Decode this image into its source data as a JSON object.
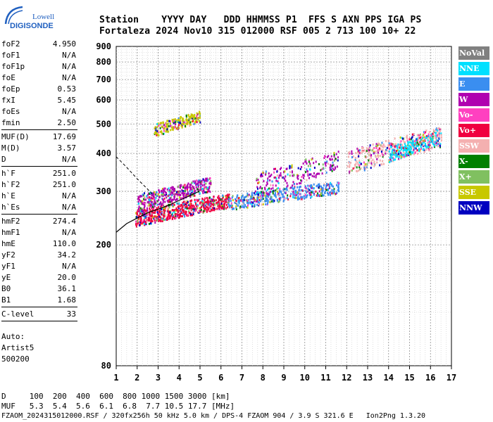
{
  "logo": {
    "line1": "Lowell",
    "line2": "DIGISONDE"
  },
  "header": {
    "labels": "Station    YYYY DAY   DDD HHMMSS P1  FFS S AXN PPS IGA PS",
    "values": "Fortaleza 2024 Nov10 315 012000 RSF 005 2 713 100 10+ 22"
  },
  "params": {
    "group1": [
      [
        "foF2",
        "4.950"
      ],
      [
        "foF1",
        "N/A"
      ],
      [
        "foF1p",
        "N/A"
      ],
      [
        "foE",
        "N/A"
      ],
      [
        "foEp",
        "0.53"
      ],
      [
        "fxI",
        "5.45"
      ],
      [
        "foEs",
        "N/A"
      ],
      [
        "fmin",
        "2.50"
      ]
    ],
    "group2": [
      [
        "MUF(D)",
        "17.69"
      ],
      [
        "M(D)",
        "3.57"
      ],
      [
        "D",
        "N/A"
      ]
    ],
    "group3": [
      [
        "h`F",
        "251.0"
      ],
      [
        "h`F2",
        "251.0"
      ],
      [
        "h`E",
        "N/A"
      ],
      [
        "h`Es",
        "N/A"
      ]
    ],
    "group4": [
      [
        "hmF2",
        "274.4"
      ],
      [
        "hmF1",
        "N/A"
      ],
      [
        "hmE",
        "110.0"
      ],
      [
        "yF2",
        "34.2"
      ],
      [
        "yF1",
        "N/A"
      ],
      [
        "yE",
        "20.0"
      ],
      [
        "B0",
        "36.1"
      ],
      [
        "B1",
        "1.68"
      ]
    ],
    "group5": [
      [
        "C-level",
        "33"
      ]
    ],
    "auto": [
      "Auto:",
      "Artist5",
      "500200"
    ]
  },
  "legend": [
    {
      "label": "NoVal",
      "color": "#808080"
    },
    {
      "label": "NNE",
      "color": "#00e0ff"
    },
    {
      "label": "E",
      "color": "#3a8ef0"
    },
    {
      "label": "W",
      "color": "#b000b0"
    },
    {
      "label": "Vo-",
      "color": "#ff40c0"
    },
    {
      "label": "Vo+",
      "color": "#f00040"
    },
    {
      "label": "SSW",
      "color": "#f4b0b0"
    },
    {
      "label": "X-",
      "color": "#008000"
    },
    {
      "label": "X+",
      "color": "#80c060"
    },
    {
      "label": "SSE",
      "color": "#c8c800"
    },
    {
      "label": "NNW",
      "color": "#0000c0"
    }
  ],
  "footer": {
    "dist": "D     100  200  400  600  800 1000 1500 3000 [km]",
    "muf": "MUF   5.3  5.4  5.6  6.1  6.8  7.7 10.5 17.7 [MHz]",
    "file": "FZAOM_2024315012000.RSF / 320fx256h 50 kHz 5.0 km / DPS-4 FZAOM 904 / 3.9 S 321.6 E   Ion2Png 1.3.20"
  },
  "chart_data": {
    "type": "scatter",
    "xlim": [
      1,
      17
    ],
    "ylim": [
      80,
      900
    ],
    "xticks": [
      "1",
      "2",
      "3",
      "4",
      "5",
      "6",
      "7",
      "8",
      "9",
      "10",
      "11",
      "12",
      "13",
      "14",
      "15",
      "16",
      "17"
    ],
    "yticks": [
      "80",
      "200",
      "300",
      "400",
      "500",
      "600",
      "700",
      "800",
      "900"
    ],
    "xtick_values": [
      1,
      2,
      3,
      4,
      5,
      6,
      7,
      8,
      9,
      10,
      11,
      12,
      13,
      14,
      15,
      16,
      17
    ],
    "ytick_values": [
      80,
      200,
      300,
      400,
      500,
      600,
      700,
      800,
      900
    ],
    "xlabel": "",
    "ylabel": "",
    "log_y": true,
    "grid": true,
    "clusters": [
      {
        "x": [
          1.9,
          6.4
        ],
        "y": [
          240,
          300
        ],
        "color": "#f00040",
        "density": 3
      },
      {
        "x": [
          2.0,
          5.5
        ],
        "y": [
          270,
          340
        ],
        "color": "#b000b0",
        "density": 2
      },
      {
        "x": [
          6.3,
          11.6
        ],
        "y": [
          270,
          330
        ],
        "color": "#3a8ef0",
        "density": 2
      },
      {
        "x": [
          7.6,
          11.6
        ],
        "y": [
          300,
          420
        ],
        "color": "#b000b0",
        "density": 1
      },
      {
        "x": [
          2.8,
          5.0
        ],
        "y": [
          470,
          560
        ],
        "color": "#c8c800",
        "density": 1
      },
      {
        "x": [
          12.0,
          16.5
        ],
        "y": [
          360,
          500
        ],
        "color": "#f4b0b0",
        "density": 2
      },
      {
        "x": [
          14.0,
          16.3
        ],
        "y": [
          390,
          480
        ],
        "color": "#00e0ff",
        "density": 1
      }
    ],
    "profile_curve": {
      "x": [
        1.0,
        1.5,
        2.0,
        2.5,
        3.0,
        3.5,
        4.0,
        4.5,
        4.95
      ],
      "y": [
        220,
        235,
        245,
        255,
        262,
        270,
        280,
        290,
        300
      ]
    },
    "dashed_curve": {
      "x": [
        1.0,
        1.5,
        2.0,
        2.5,
        2.8
      ],
      "y": [
        390,
        360,
        330,
        305,
        290
      ]
    }
  }
}
